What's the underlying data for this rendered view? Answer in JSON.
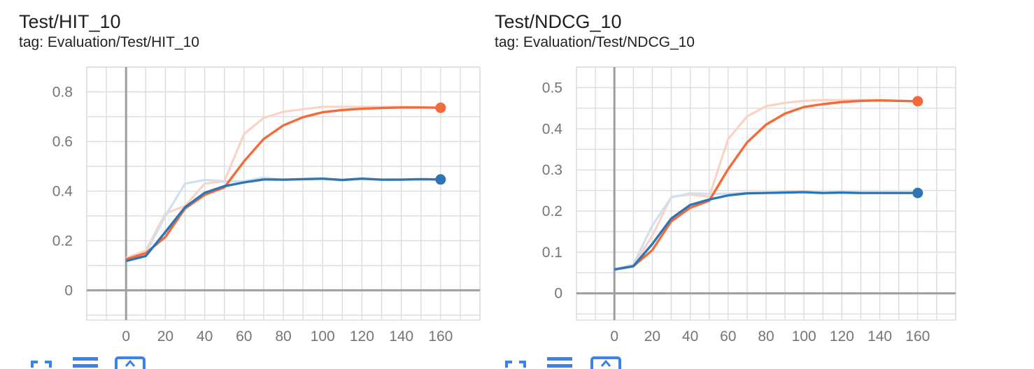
{
  "colors": {
    "orange": "#f26b38",
    "orange_light": "#fbd3c4",
    "blue": "#2e75b6",
    "blue_light": "#cfe0ef",
    "grid": "#dcdcdc",
    "axis": "#9e9e9e",
    "toolbar_icon": "#3b82e6"
  },
  "charts": [
    {
      "title": "Test/HIT_10",
      "tag": "tag: Evaluation/Test/HIT_10",
      "toolbar": {
        "icons": [
          "fit-domain-icon",
          "toggle-log-scale-icon",
          "expand-chart-icon"
        ]
      }
    },
    {
      "title": "Test/NDCG_10",
      "tag": "tag: Evaluation/Test/NDCG_10",
      "toolbar": {
        "icons": [
          "fit-domain-icon",
          "toggle-log-scale-icon",
          "expand-chart-icon"
        ]
      }
    }
  ],
  "chart_data": [
    {
      "type": "line",
      "title": "Test/HIT_10",
      "xlabel": "",
      "ylabel": "",
      "xlim": [
        -20,
        180
      ],
      "ylim": [
        -0.12,
        0.9
      ],
      "grid": true,
      "xticks": [
        0,
        20,
        40,
        60,
        80,
        100,
        120,
        140,
        160
      ],
      "xtick_labels": [
        "0",
        "20",
        "40",
        "60",
        "80",
        "100",
        "120",
        "140",
        "160"
      ],
      "yticks": [
        0,
        0.2,
        0.4,
        0.6,
        0.8
      ],
      "ytick_labels": [
        "0",
        "0.2",
        "0.4",
        "0.6",
        "0.8"
      ],
      "series": [
        {
          "color": "orange",
          "raw": [
            [
              0,
              0.13
            ],
            [
              10,
              0.16
            ],
            [
              20,
              0.31
            ],
            [
              30,
              0.34
            ],
            [
              40,
              0.43
            ],
            [
              50,
              0.44
            ],
            [
              60,
              0.63
            ],
            [
              70,
              0.695
            ],
            [
              80,
              0.72
            ],
            [
              90,
              0.73
            ],
            [
              100,
              0.74
            ],
            [
              110,
              0.74
            ],
            [
              120,
              0.74
            ],
            [
              130,
              0.74
            ],
            [
              140,
              0.74
            ],
            [
              150,
              0.738
            ],
            [
              160,
              0.736
            ]
          ],
          "smoothed": [
            [
              0,
              0.125
            ],
            [
              10,
              0.15
            ],
            [
              20,
              0.215
            ],
            [
              30,
              0.33
            ],
            [
              40,
              0.385
            ],
            [
              50,
              0.415
            ],
            [
              60,
              0.52
            ],
            [
              70,
              0.61
            ],
            [
              80,
              0.665
            ],
            [
              90,
              0.698
            ],
            [
              100,
              0.718
            ],
            [
              110,
              0.727
            ],
            [
              120,
              0.732
            ],
            [
              130,
              0.735
            ],
            [
              140,
              0.737
            ],
            [
              150,
              0.737
            ],
            [
              160,
              0.736
            ]
          ]
        },
        {
          "color": "blue",
          "raw": [
            [
              0,
              0.12
            ],
            [
              10,
              0.15
            ],
            [
              20,
              0.3
            ],
            [
              30,
              0.43
            ],
            [
              40,
              0.445
            ],
            [
              50,
              0.44
            ],
            [
              60,
              0.44
            ],
            [
              70,
              0.455
            ],
            [
              80,
              0.445
            ],
            [
              90,
              0.45
            ],
            [
              100,
              0.452
            ],
            [
              110,
              0.443
            ],
            [
              120,
              0.452
            ],
            [
              130,
              0.445
            ],
            [
              140,
              0.447
            ],
            [
              150,
              0.449
            ],
            [
              160,
              0.447
            ]
          ],
          "smoothed": [
            [
              0,
              0.118
            ],
            [
              10,
              0.138
            ],
            [
              20,
              0.235
            ],
            [
              30,
              0.335
            ],
            [
              40,
              0.393
            ],
            [
              50,
              0.42
            ],
            [
              60,
              0.435
            ],
            [
              70,
              0.447
            ],
            [
              80,
              0.446
            ],
            [
              90,
              0.448
            ],
            [
              100,
              0.45
            ],
            [
              110,
              0.445
            ],
            [
              120,
              0.45
            ],
            [
              130,
              0.446
            ],
            [
              140,
              0.446
            ],
            [
              150,
              0.448
            ],
            [
              160,
              0.447
            ]
          ]
        }
      ]
    },
    {
      "type": "line",
      "title": "Test/NDCG_10",
      "xlabel": "",
      "ylabel": "",
      "xlim": [
        -20,
        180
      ],
      "ylim": [
        -0.065,
        0.55
      ],
      "grid": true,
      "xticks": [
        0,
        20,
        40,
        60,
        80,
        100,
        120,
        140,
        160
      ],
      "xtick_labels": [
        "0",
        "20",
        "40",
        "60",
        "80",
        "100",
        "120",
        "140",
        "160"
      ],
      "yticks": [
        0,
        0.1,
        0.2,
        0.3,
        0.4,
        0.5
      ],
      "ytick_labels": [
        "0",
        "0.1",
        "0.2",
        "0.3",
        "0.4",
        "0.5"
      ],
      "series": [
        {
          "color": "orange",
          "raw": [
            [
              0,
              0.058
            ],
            [
              10,
              0.068
            ],
            [
              20,
              0.14
            ],
            [
              30,
              0.235
            ],
            [
              40,
              0.24
            ],
            [
              50,
              0.235
            ],
            [
              60,
              0.375
            ],
            [
              70,
              0.43
            ],
            [
              80,
              0.455
            ],
            [
              90,
              0.463
            ],
            [
              100,
              0.468
            ],
            [
              110,
              0.47
            ],
            [
              120,
              0.47
            ],
            [
              130,
              0.47
            ],
            [
              140,
              0.47
            ],
            [
              150,
              0.468
            ],
            [
              160,
              0.467
            ]
          ],
          "smoothed": [
            [
              0,
              0.058
            ],
            [
              10,
              0.066
            ],
            [
              20,
              0.105
            ],
            [
              30,
              0.175
            ],
            [
              40,
              0.208
            ],
            [
              50,
              0.225
            ],
            [
              60,
              0.302
            ],
            [
              70,
              0.367
            ],
            [
              80,
              0.41
            ],
            [
              90,
              0.437
            ],
            [
              100,
              0.453
            ],
            [
              110,
              0.46
            ],
            [
              120,
              0.465
            ],
            [
              130,
              0.468
            ],
            [
              140,
              0.469
            ],
            [
              150,
              0.468
            ],
            [
              160,
              0.467
            ]
          ]
        },
        {
          "color": "blue",
          "raw": [
            [
              0,
              0.058
            ],
            [
              10,
              0.07
            ],
            [
              20,
              0.165
            ],
            [
              30,
              0.233
            ],
            [
              40,
              0.243
            ],
            [
              50,
              0.242
            ],
            [
              60,
              0.242
            ],
            [
              70,
              0.245
            ],
            [
              80,
              0.244
            ],
            [
              90,
              0.246
            ],
            [
              100,
              0.246
            ],
            [
              110,
              0.243
            ],
            [
              120,
              0.245
            ],
            [
              130,
              0.243
            ],
            [
              140,
              0.244
            ],
            [
              150,
              0.244
            ],
            [
              160,
              0.244
            ]
          ],
          "smoothed": [
            [
              0,
              0.058
            ],
            [
              10,
              0.066
            ],
            [
              20,
              0.12
            ],
            [
              30,
              0.182
            ],
            [
              40,
              0.215
            ],
            [
              50,
              0.228
            ],
            [
              60,
              0.238
            ],
            [
              70,
              0.243
            ],
            [
              80,
              0.244
            ],
            [
              90,
              0.245
            ],
            [
              100,
              0.246
            ],
            [
              110,
              0.244
            ],
            [
              120,
              0.245
            ],
            [
              130,
              0.244
            ],
            [
              140,
              0.244
            ],
            [
              150,
              0.244
            ],
            [
              160,
              0.244
            ]
          ]
        }
      ]
    }
  ]
}
